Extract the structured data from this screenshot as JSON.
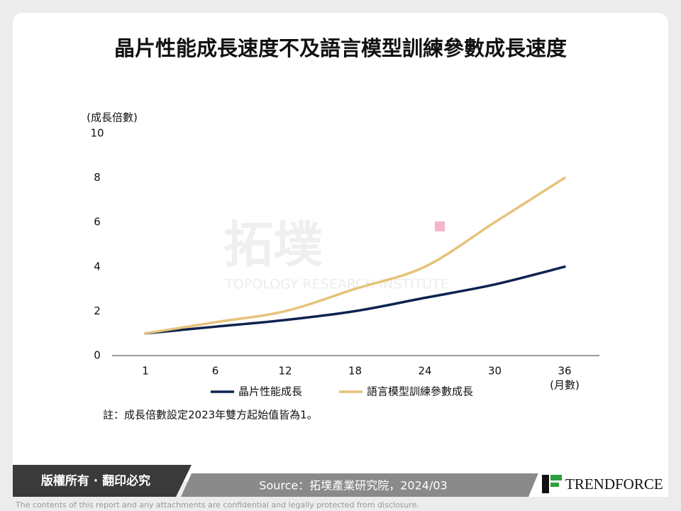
{
  "header": {
    "title": "晶片性能成長速度不及語言模型訓練參數成長速度"
  },
  "chart_data": {
    "type": "line",
    "y_label": "(成長倍數)",
    "x_label": "(月數)",
    "categories": [
      "1",
      "6",
      "12",
      "18",
      "24",
      "30",
      "36"
    ],
    "series": [
      {
        "name": "晶片性能成長",
        "color": "#0d2350",
        "values": [
          1,
          1.3,
          1.6,
          2.0,
          2.6,
          3.2,
          4.0
        ]
      },
      {
        "name": "語言模型訓練參數成長",
        "color": "#e6c27a",
        "values": [
          1,
          1.5,
          2.0,
          3.0,
          4.0,
          6.0,
          8.0
        ]
      }
    ],
    "ylim": [
      0,
      10
    ],
    "yticks": [
      0,
      2,
      4,
      6,
      8,
      10
    ],
    "note": "註：成長倍數設定2023年雙方起始值皆為1。"
  },
  "watermark": {
    "name": "拓墣",
    "english": "TOPOLOGY RESEARCH INSTITUTE"
  },
  "footer": {
    "copyright": "版權所有 · 翻印必究",
    "source": "Source：拓墣產業研究院，2024/03",
    "logo": "TRENDFORCE",
    "disclaimer": "The contents of this report and any attachments are confidential and legally protected from disclosure."
  }
}
